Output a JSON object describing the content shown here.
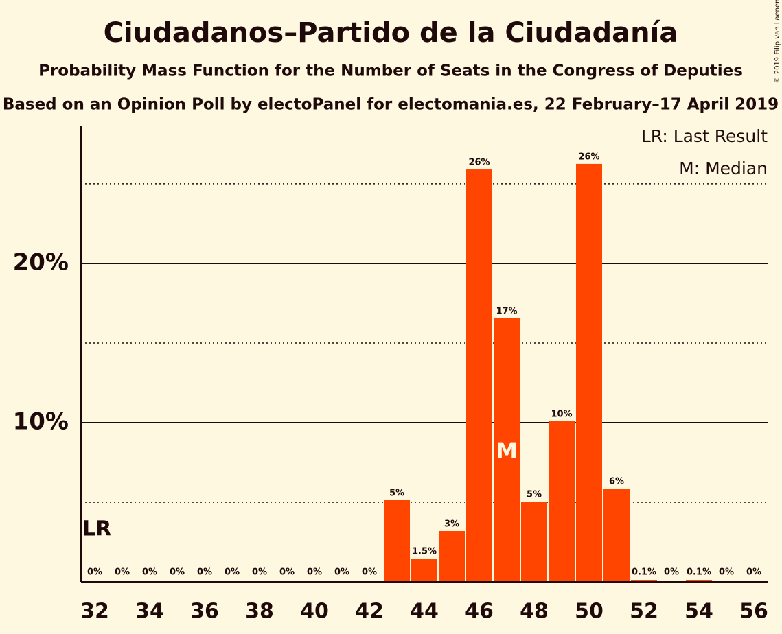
{
  "chart_data": {
    "type": "bar",
    "title": "Ciudadanos–Partido de la Ciudadanía",
    "subtitle": "Probability Mass Function for the Number of Seats in the Congress of Deputies",
    "source": "Based on an Opinion Poll by electoPanel for electomania.es, 22 February–17 April 2019",
    "copyright": "© 2019 Filip van Laenen",
    "legend": [
      "LR: Last Result",
      "M: Median"
    ],
    "annotations": [
      {
        "text": "LR",
        "x": 32
      },
      {
        "text": "M",
        "x": 47
      }
    ],
    "x": [
      32,
      33,
      34,
      35,
      36,
      37,
      38,
      39,
      40,
      41,
      42,
      43,
      44,
      45,
      46,
      47,
      48,
      49,
      50,
      51,
      52,
      53,
      54,
      55,
      56
    ],
    "values": [
      0,
      0,
      0,
      0,
      0,
      0,
      0,
      0,
      0,
      0,
      0,
      5.13,
      1.46,
      3.19,
      25.9,
      16.55,
      5.04,
      10.09,
      26.25,
      5.86,
      0.1,
      0,
      0.1,
      0,
      0
    ],
    "value_labels": [
      "0%",
      "0%",
      "0%",
      "0%",
      "0%",
      "0%",
      "0%",
      "0%",
      "0%",
      "0%",
      "0%",
      "5%",
      "1.5%",
      "3%",
      "26%",
      "17%",
      "5%",
      "10%",
      "26%",
      "6%",
      "0.1%",
      "0%",
      "0.1%",
      "0%",
      "0%"
    ],
    "color": "#ff4500",
    "xlim": [
      31.5,
      56.5
    ],
    "xticks": [
      32,
      34,
      36,
      38,
      40,
      42,
      44,
      46,
      48,
      50,
      52,
      54,
      56
    ],
    "ylim": [
      0,
      28.66
    ],
    "yticks": [
      {
        "value": 10,
        "label": "10%"
      },
      {
        "value": 20,
        "label": "20%"
      }
    ],
    "minor_gridlines": [
      5,
      15,
      25
    ],
    "grid": true
  }
}
